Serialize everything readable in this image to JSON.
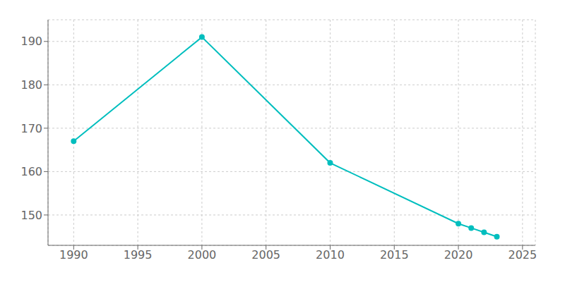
{
  "chart_data": {
    "type": "line",
    "x": [
      1990,
      2000,
      2010,
      2020,
      2021,
      2022,
      2023
    ],
    "values": [
      167,
      191,
      162,
      148,
      147,
      146,
      145
    ],
    "color": "#00BEBE",
    "xlim": [
      1988,
      2026
    ],
    "ylim": [
      143,
      195
    ],
    "xticks": [
      1990,
      1995,
      2000,
      2005,
      2010,
      2015,
      2020,
      2025
    ],
    "yticks": [
      150,
      160,
      170,
      180,
      190
    ],
    "grid": true,
    "marker": "circle"
  }
}
